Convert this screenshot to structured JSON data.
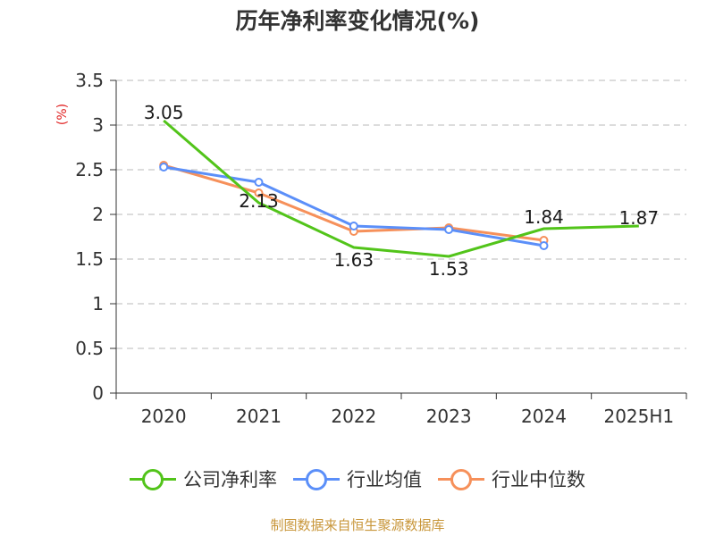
{
  "title": "历年净利率变化情况(%)",
  "footer": "制图数据来自恒生聚源数据库",
  "chart_data": {
    "type": "line",
    "title": "历年净利率变化情况(%)",
    "ylabel": "(%)",
    "xlabel": "",
    "categories": [
      "2020",
      "2021",
      "2022",
      "2023",
      "2024",
      "2025H1"
    ],
    "ylim": [
      0,
      3.5
    ],
    "yticks": [
      0,
      0.5,
      1,
      1.5,
      2,
      2.5,
      3,
      3.5
    ],
    "ytick_labels": [
      "0",
      "0.5",
      "1",
      "1.5",
      "2",
      "2.5",
      "3",
      "3.5"
    ],
    "grid": true,
    "legend_position": "bottom",
    "series": [
      {
        "name": "公司净利率",
        "color": "#52c41a",
        "values": [
          3.05,
          2.13,
          1.63,
          1.53,
          1.84,
          1.87
        ],
        "labels": [
          "3.05",
          "2.13",
          "1.63",
          "1.53",
          "1.84",
          "1.87"
        ],
        "show_markers": false
      },
      {
        "name": "行业均值",
        "color": "#5b8ff9",
        "values": [
          2.53,
          2.36,
          1.87,
          1.83,
          1.65,
          null
        ],
        "show_markers": true
      },
      {
        "name": "行业中位数",
        "color": "#f6905a",
        "values": [
          2.55,
          2.24,
          1.81,
          1.85,
          1.71,
          null
        ],
        "show_markers": true
      }
    ]
  }
}
